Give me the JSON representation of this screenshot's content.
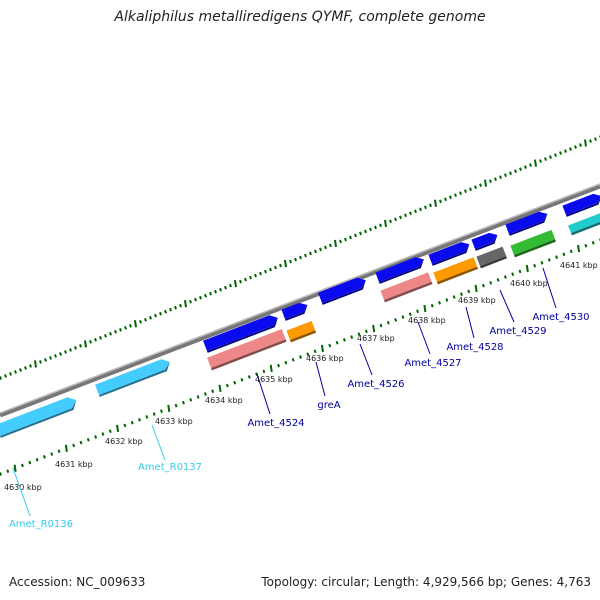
{
  "title": "Alkaliphilus metalliredigens QYMF, complete genome",
  "footer": {
    "accession_label": "Accession:",
    "accession": "NC_009633",
    "info": "Topology: circular; Length: 4,929,566 bp; Genes: 4,763"
  },
  "ruler": {
    "unit": "kbp",
    "ticks": [
      4630,
      4631,
      4632,
      4633,
      4634,
      4635,
      4636,
      4637,
      4638,
      4639,
      4640,
      4641
    ]
  },
  "gene_labels": [
    {
      "name": "Amet_R0136",
      "color": "#33ccee"
    },
    {
      "name": "Amet_R0137",
      "color": "#33ccee"
    },
    {
      "name": "Amet_4524",
      "color": "#000099"
    },
    {
      "name": "greA",
      "color": "#000099"
    },
    {
      "name": "Amet_4526",
      "color": "#000099"
    },
    {
      "name": "Amet_4527",
      "color": "#000099"
    },
    {
      "name": "Amet_4528",
      "color": "#000099"
    },
    {
      "name": "Amet_4529",
      "color": "#000099"
    },
    {
      "name": "Amet_4530",
      "color": "#000099"
    }
  ],
  "colors": {
    "cds": "#0a0aee",
    "rrna": "#44ccff",
    "salmon": "#ee8888",
    "orange": "#ff9900",
    "gray": "#666666",
    "green": "#33bb33",
    "cyan": "#22cccc",
    "backbone": "#999999",
    "ticks": "#006600"
  }
}
